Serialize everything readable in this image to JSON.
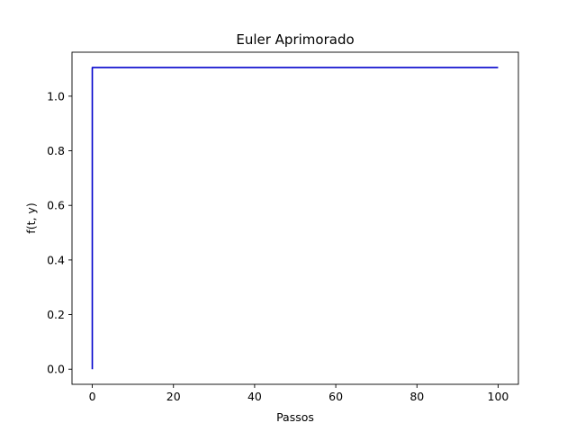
{
  "chart_data": {
    "type": "line",
    "title": "Euler Aprimorado",
    "xlabel": "Passos",
    "ylabel": "f(t, y)",
    "xlim": [
      -5,
      105
    ],
    "ylim": [
      -0.0553,
      1.1611
    ],
    "xticks": [
      0,
      20,
      40,
      60,
      80,
      100
    ],
    "xtick_labels": [
      "0",
      "20",
      "40",
      "60",
      "80",
      "100"
    ],
    "yticks": [
      0.0,
      0.2,
      0.4,
      0.6,
      0.8,
      1.0
    ],
    "ytick_labels": [
      "0.0",
      "0.2",
      "0.4",
      "0.6",
      "0.8",
      "1.0"
    ],
    "grid": false,
    "series": [
      {
        "color": "#0000cc",
        "x": [
          0,
          0,
          1,
          2,
          3,
          4,
          5,
          10,
          20,
          30,
          40,
          50,
          60,
          70,
          80,
          90,
          100
        ],
        "y": [
          0.0,
          1.105,
          1.105,
          1.105,
          1.105,
          1.105,
          1.105,
          1.105,
          1.105,
          1.105,
          1.105,
          1.105,
          1.105,
          1.105,
          1.105,
          1.105,
          1.105
        ]
      }
    ]
  }
}
